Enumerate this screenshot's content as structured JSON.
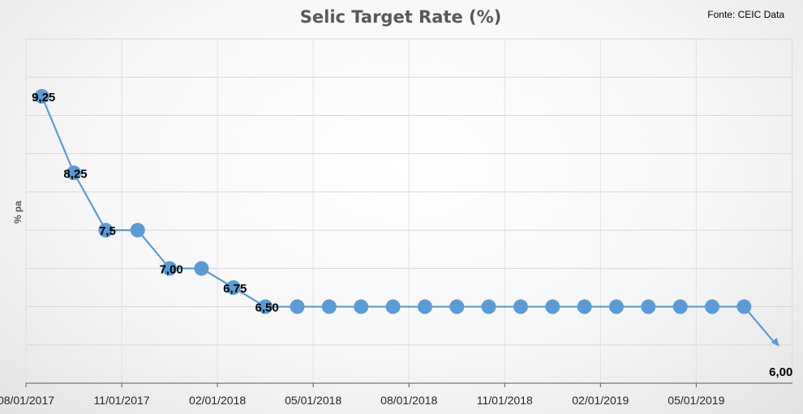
{
  "chart_data": {
    "type": "line",
    "title": "Selic Target Rate (%)",
    "source": "Fonte: CEIC Data",
    "ylabel": "% pa",
    "xlabel": "",
    "ylim": [
      5.5,
      10.0
    ],
    "grid": true,
    "legend": "none",
    "x_tick_labels": [
      "08/01/2017",
      "11/01/2017",
      "02/01/2018",
      "05/01/2018",
      "08/01/2018",
      "11/01/2018",
      "02/01/2019",
      "05/01/2019"
    ],
    "series": [
      {
        "color": "#5b9bd5",
        "x": [
          "2017-09",
          "2017-10",
          "2017-11",
          "2017-12",
          "2018-01",
          "2018-02",
          "2018-03",
          "2018-04",
          "2018-05",
          "2018-06",
          "2018-07",
          "2018-08",
          "2018-09",
          "2018-10",
          "2018-11",
          "2018-12",
          "2019-01",
          "2019-02",
          "2019-03",
          "2019-04",
          "2019-05",
          "2019-06",
          "2019-07",
          "2019-08"
        ],
        "values": [
          9.25,
          8.25,
          7.5,
          7.5,
          7.0,
          7.0,
          6.75,
          6.5,
          6.5,
          6.5,
          6.5,
          6.5,
          6.5,
          6.5,
          6.5,
          6.5,
          6.5,
          6.5,
          6.5,
          6.5,
          6.5,
          6.5,
          6.5,
          6.0
        ]
      }
    ],
    "data_labels": [
      {
        "index": 0,
        "text": "9,25"
      },
      {
        "index": 1,
        "text": "8,25"
      },
      {
        "index": 2,
        "text": "7,5"
      },
      {
        "index": 4,
        "text": "7,00"
      },
      {
        "index": 6,
        "text": "6,75"
      },
      {
        "index": 7,
        "text": "6,50"
      },
      {
        "index": 23,
        "text": "6,00"
      }
    ]
  }
}
